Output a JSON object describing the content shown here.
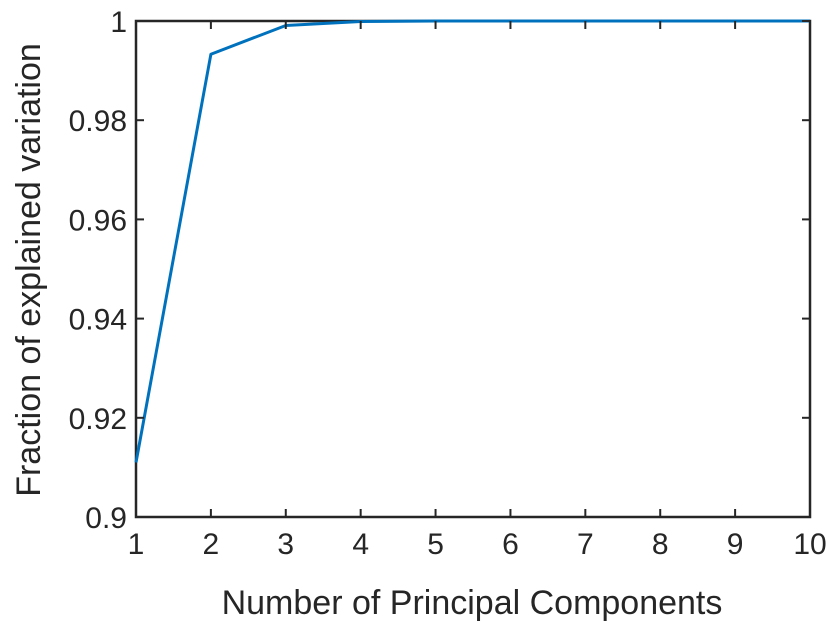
{
  "chart_data": {
    "type": "line",
    "xlabel": "Number of Principal Components",
    "ylabel": "Fraction of explained variation",
    "xlim": [
      1,
      10
    ],
    "ylim": [
      0.9,
      1
    ],
    "xticks": [
      1,
      2,
      3,
      4,
      5,
      6,
      7,
      8,
      9,
      10
    ],
    "yticks": [
      0.9,
      0.92,
      0.94,
      0.96,
      0.98,
      1
    ],
    "ytick_labels": [
      "0.9",
      "0.92",
      "0.94",
      "0.96",
      "0.98",
      "1"
    ],
    "grid": false,
    "series": [
      {
        "color": "#0072BD",
        "x": [
          1,
          2,
          3,
          4,
          5,
          6,
          7,
          8,
          9,
          10
        ],
        "y": [
          0.911,
          0.9933,
          0.9991,
          0.9999,
          1.0,
          1.0,
          1.0,
          1.0,
          1.0,
          1.0
        ]
      }
    ]
  }
}
